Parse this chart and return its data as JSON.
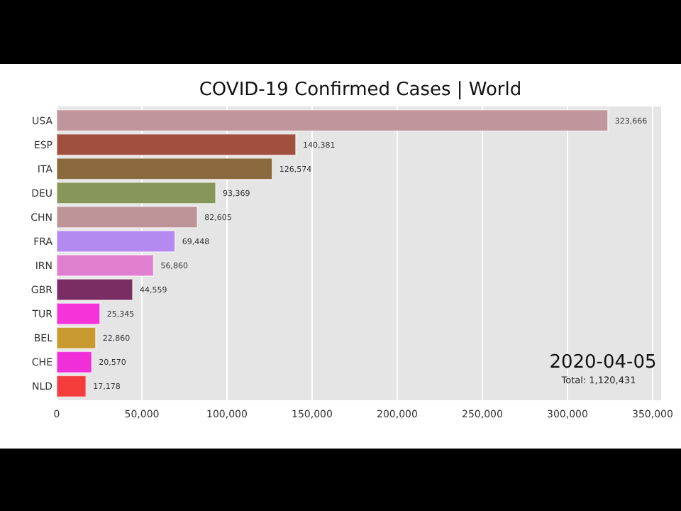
{
  "chart_data": {
    "type": "bar",
    "orientation": "horizontal",
    "title": "COVID-19 Confirmed Cases | World",
    "categories": [
      "USA",
      "ESP",
      "ITA",
      "DEU",
      "CHN",
      "FRA",
      "IRN",
      "GBR",
      "TUR",
      "BEL",
      "CHE",
      "NLD"
    ],
    "values": [
      323666,
      140381,
      126574,
      93369,
      82605,
      69448,
      56860,
      44559,
      25345,
      22860,
      20570,
      17178
    ],
    "colors": [
      "#c0959c",
      "#a1503f",
      "#8a6a3d",
      "#879659",
      "#bd9398",
      "#b48af0",
      "#e07fd0",
      "#7a2d62",
      "#f533d8",
      "#c8992f",
      "#f02fd8",
      "#f53c3c"
    ],
    "xlim": [
      0,
      355000
    ],
    "xticks": [
      {
        "value": 0,
        "label": "0"
      },
      {
        "value": 50000,
        "label": "50,000"
      },
      {
        "value": 100000,
        "label": "100,000"
      },
      {
        "value": 150000,
        "label": "150,000"
      },
      {
        "value": 200000,
        "label": "200,000"
      },
      {
        "value": 250000,
        "label": "250,000"
      },
      {
        "value": 300000,
        "label": "300,000"
      },
      {
        "value": 350000,
        "label": "350,000"
      }
    ],
    "grid": "x",
    "value_labels": [
      "323,666",
      "140,381",
      "126,574",
      "93,369",
      "82,605",
      "69,448",
      "56,860",
      "44,559",
      "25,345",
      "22,860",
      "20,570",
      "17,178"
    ],
    "annotations": [
      "2020-04-05",
      "Total: 1,120,431"
    ]
  }
}
